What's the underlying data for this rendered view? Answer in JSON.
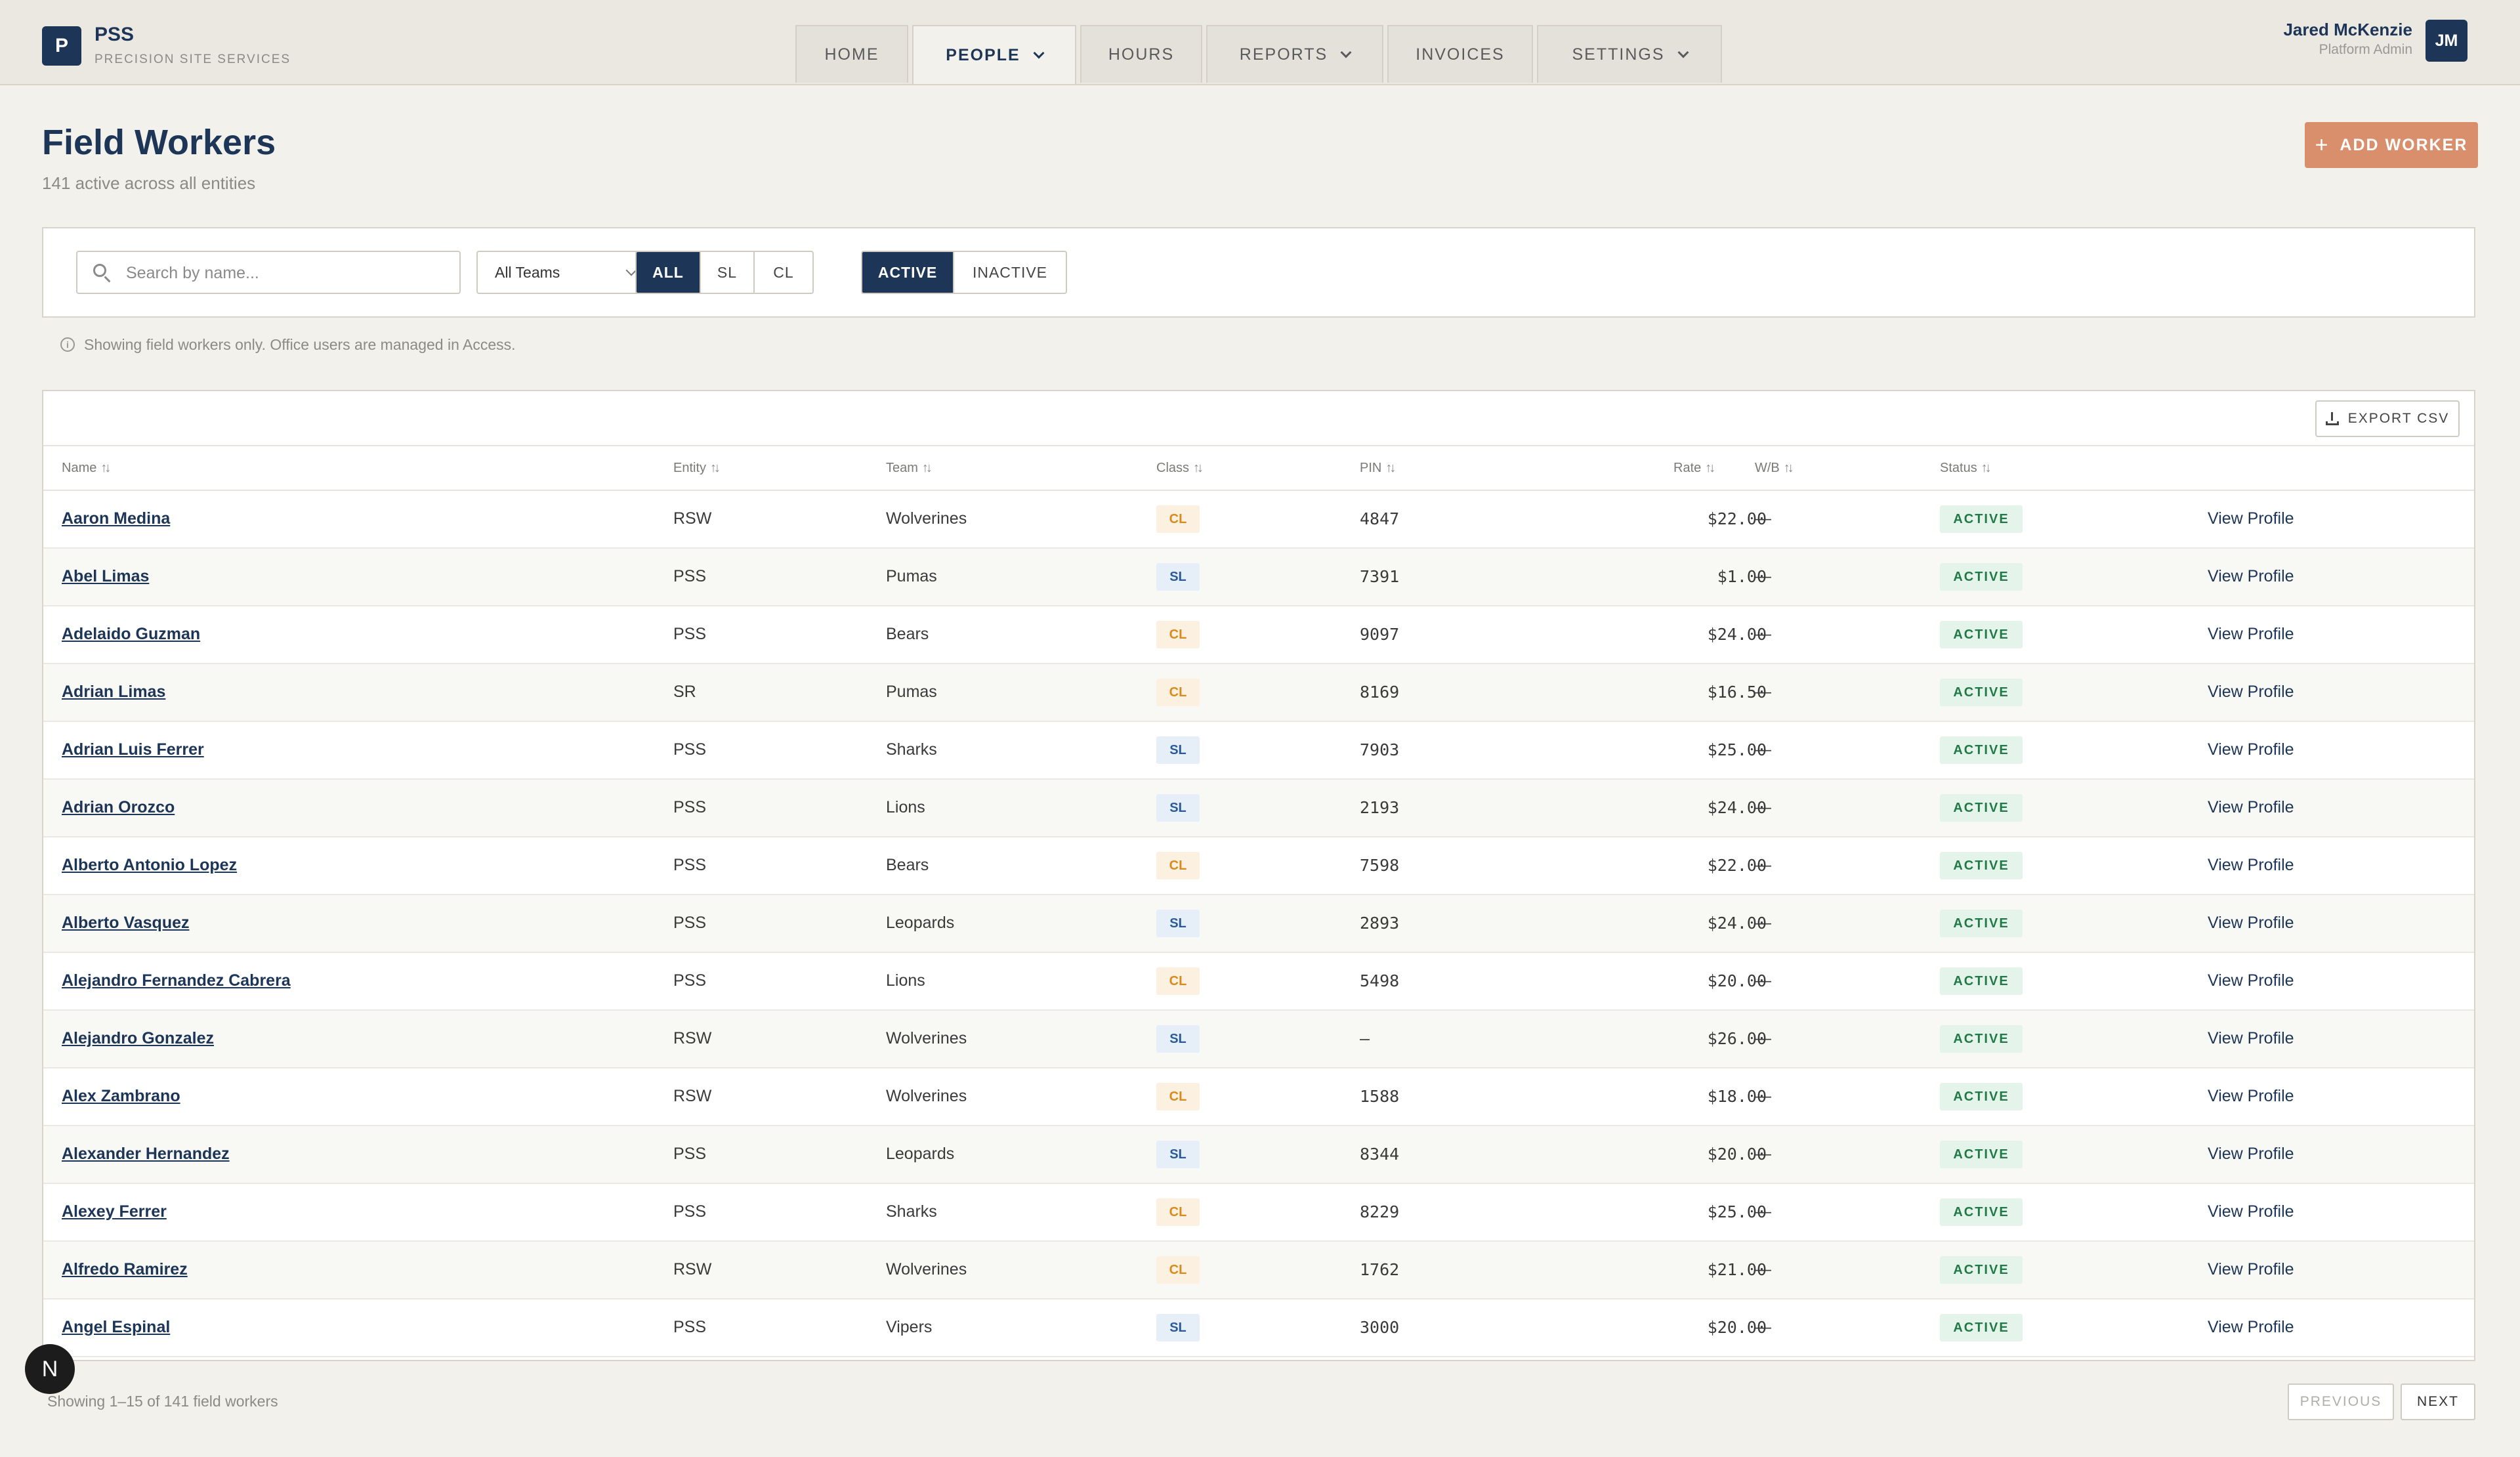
{
  "brand": {
    "logo_letter": "P",
    "name": "PSS",
    "subtitle": "PRECISION SITE SERVICES"
  },
  "nav": [
    {
      "label": "HOME",
      "active": false,
      "dropdown": false
    },
    {
      "label": "PEOPLE",
      "active": true,
      "dropdown": true
    },
    {
      "label": "HOURS",
      "active": false,
      "dropdown": false
    },
    {
      "label": "REPORTS",
      "active": false,
      "dropdown": true
    },
    {
      "label": "INVOICES",
      "active": false,
      "dropdown": false
    },
    {
      "label": "SETTINGS",
      "active": false,
      "dropdown": true
    }
  ],
  "user": {
    "name": "Jared McKenzie",
    "role": "Platform Admin",
    "initials": "JM"
  },
  "page": {
    "title": "Field Workers",
    "subtitle": "141 active across all entities",
    "add_label": "ADD WORKER",
    "add_icon": "plus-icon"
  },
  "filters": {
    "search_placeholder": "Search by name...",
    "team_select": "All Teams",
    "class_options": [
      "ALL",
      "SL",
      "CL"
    ],
    "class_selected": "ALL",
    "status_options": [
      "ACTIVE",
      "INACTIVE"
    ],
    "status_selected": "ACTIVE"
  },
  "note": "Showing field workers only. Office users are managed in Access.",
  "table": {
    "export_label": "EXPORT CSV",
    "columns": [
      "Name",
      "Entity",
      "Team",
      "Class",
      "PIN",
      "Rate",
      "W/B",
      "Status"
    ],
    "view_label": "View Profile",
    "rows": [
      {
        "name": "Aaron Medina",
        "entity": "RSW",
        "team": "Wolverines",
        "class": "CL",
        "pin": "4847",
        "rate": "$22.00",
        "wb": "—",
        "status": "ACTIVE"
      },
      {
        "name": "Abel Limas",
        "entity": "PSS",
        "team": "Pumas",
        "class": "SL",
        "pin": "7391",
        "rate": "$1.00",
        "wb": "—",
        "status": "ACTIVE"
      },
      {
        "name": "Adelaido Guzman",
        "entity": "PSS",
        "team": "Bears",
        "class": "CL",
        "pin": "9097",
        "rate": "$24.00",
        "wb": "—",
        "status": "ACTIVE"
      },
      {
        "name": "Adrian Limas",
        "entity": "SR",
        "team": "Pumas",
        "class": "CL",
        "pin": "8169",
        "rate": "$16.50",
        "wb": "—",
        "status": "ACTIVE"
      },
      {
        "name": "Adrian Luis Ferrer",
        "entity": "PSS",
        "team": "Sharks",
        "class": "SL",
        "pin": "7903",
        "rate": "$25.00",
        "wb": "—",
        "status": "ACTIVE"
      },
      {
        "name": "Adrian Orozco",
        "entity": "PSS",
        "team": "Lions",
        "class": "SL",
        "pin": "2193",
        "rate": "$24.00",
        "wb": "—",
        "status": "ACTIVE"
      },
      {
        "name": "Alberto Antonio Lopez",
        "entity": "PSS",
        "team": "Bears",
        "class": "CL",
        "pin": "7598",
        "rate": "$22.00",
        "wb": "—",
        "status": "ACTIVE"
      },
      {
        "name": "Alberto Vasquez",
        "entity": "PSS",
        "team": "Leopards",
        "class": "SL",
        "pin": "2893",
        "rate": "$24.00",
        "wb": "—",
        "status": "ACTIVE"
      },
      {
        "name": "Alejandro Fernandez Cabrera",
        "entity": "PSS",
        "team": "Lions",
        "class": "CL",
        "pin": "5498",
        "rate": "$20.00",
        "wb": "—",
        "status": "ACTIVE"
      },
      {
        "name": "Alejandro Gonzalez",
        "entity": "RSW",
        "team": "Wolverines",
        "class": "SL",
        "pin": "—",
        "rate": "$26.00",
        "wb": "—",
        "status": "ACTIVE"
      },
      {
        "name": "Alex Zambrano",
        "entity": "RSW",
        "team": "Wolverines",
        "class": "CL",
        "pin": "1588",
        "rate": "$18.00",
        "wb": "—",
        "status": "ACTIVE"
      },
      {
        "name": "Alexander Hernandez",
        "entity": "PSS",
        "team": "Leopards",
        "class": "SL",
        "pin": "8344",
        "rate": "$20.00",
        "wb": "—",
        "status": "ACTIVE"
      },
      {
        "name": "Alexey Ferrer",
        "entity": "PSS",
        "team": "Sharks",
        "class": "CL",
        "pin": "8229",
        "rate": "$25.00",
        "wb": "—",
        "status": "ACTIVE"
      },
      {
        "name": "Alfredo Ramirez",
        "entity": "RSW",
        "team": "Wolverines",
        "class": "CL",
        "pin": "1762",
        "rate": "$21.00",
        "wb": "—",
        "status": "ACTIVE"
      },
      {
        "name": "Angel Espinal",
        "entity": "PSS",
        "team": "Vipers",
        "class": "SL",
        "pin": "3000",
        "rate": "$20.00",
        "wb": "—",
        "status": "ACTIVE"
      }
    ]
  },
  "pagination": {
    "summary": "Showing 1–15 of 141 field workers",
    "prev_label": "PREVIOUS",
    "next_label": "NEXT"
  },
  "floating_badge": "N",
  "colors": {
    "navy": "#1d3557",
    "accent": "#d98e6c",
    "active_green": "#207a45",
    "cl_orange": "#d98a1c",
    "sl_blue": "#2a5a9a"
  }
}
